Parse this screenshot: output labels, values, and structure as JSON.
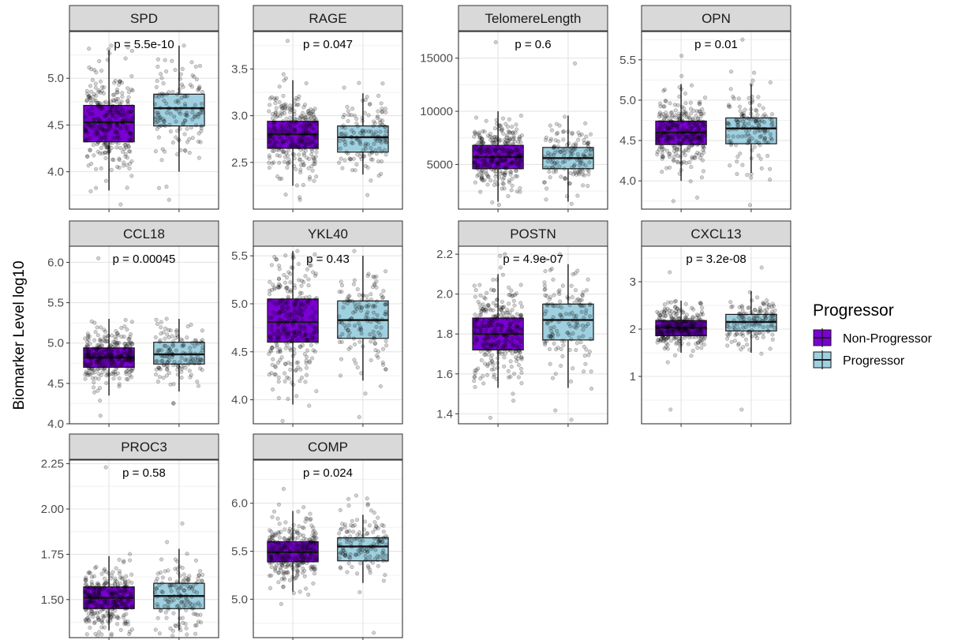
{
  "chart_data": {
    "type": "boxplot",
    "ylabel": "Biomarker Level log10",
    "legend": {
      "title": "Progressor",
      "position": "right",
      "entries": [
        {
          "label": "Non-Progressor",
          "color": "#7b00d4"
        },
        {
          "label": "Progressor",
          "color": "#9fd0e0"
        }
      ]
    },
    "grid": true,
    "groups": [
      "Non-Progressor",
      "Progressor"
    ],
    "panels": [
      {
        "name": "SPD",
        "pvalue": "p = 5.5e-10",
        "ylim": [
          3.6,
          5.5
        ],
        "ticks": [
          {
            "v": 4.0,
            "label": "4.0"
          },
          {
            "v": 4.5,
            "label": "4.5"
          },
          {
            "v": 5.0,
            "label": "5.0"
          }
        ],
        "boxes": [
          {
            "group": "Non-Progressor",
            "lower": 4.32,
            "q1": 4.32,
            "median": 4.53,
            "q3": 4.71,
            "upper": 5.0,
            "min": 3.8,
            "max": 5.3
          },
          {
            "group": "Progressor",
            "q1": 4.49,
            "median": 4.68,
            "q3": 4.83,
            "min": 4.0,
            "max": 5.35
          }
        ],
        "range_pts": [
          [
            3.65,
            5.35
          ],
          [
            3.7,
            5.35
          ]
        ]
      },
      {
        "name": "RAGE",
        "pvalue": "p = 0.047",
        "ylim": [
          2.0,
          3.9
        ],
        "ticks": [
          {
            "v": 2.5,
            "label": "2.5"
          },
          {
            "v": 3.0,
            "label": "3.0"
          },
          {
            "v": 3.5,
            "label": "3.5"
          }
        ],
        "boxes": [
          {
            "group": "Non-Progressor",
            "q1": 2.65,
            "median": 2.8,
            "q3": 2.94,
            "min": 2.25,
            "max": 3.38
          },
          {
            "group": "Progressor",
            "q1": 2.61,
            "median": 2.77,
            "q3": 2.89,
            "min": 2.37,
            "max": 3.24
          }
        ],
        "range_pts": [
          [
            2.1,
            3.8
          ],
          [
            2.15,
            3.35
          ]
        ]
      },
      {
        "name": "TelomereLength",
        "pvalue": "p = 0.6",
        "ylim": [
          800,
          17500
        ],
        "ticks": [
          {
            "v": 5000,
            "label": "5000"
          },
          {
            "v": 10000,
            "label": "10000"
          },
          {
            "v": 15000,
            "label": "15000"
          }
        ],
        "boxes": [
          {
            "group": "Non-Progressor",
            "q1": 4600,
            "median": 5700,
            "q3": 6800,
            "min": 1500,
            "max": 10000
          },
          {
            "group": "Progressor",
            "q1": 4600,
            "median": 5600,
            "q3": 6600,
            "min": 1500,
            "max": 9600
          }
        ],
        "range_pts": [
          [
            1200,
            16500
          ],
          [
            1300,
            14500
          ]
        ]
      },
      {
        "name": "OPN",
        "pvalue": "p = 0.01",
        "ylim": [
          3.65,
          5.85
        ],
        "ticks": [
          {
            "v": 4.0,
            "label": "4.0"
          },
          {
            "v": 4.5,
            "label": "4.5"
          },
          {
            "v": 5.0,
            "label": "5.0"
          },
          {
            "v": 5.5,
            "label": "5.5"
          }
        ],
        "boxes": [
          {
            "group": "Non-Progressor",
            "q1": 4.45,
            "median": 4.6,
            "q3": 4.74,
            "min": 4.0,
            "max": 5.2
          },
          {
            "group": "Progressor",
            "q1": 4.46,
            "median": 4.65,
            "q3": 4.78,
            "min": 4.1,
            "max": 5.2
          }
        ],
        "range_pts": [
          [
            3.75,
            5.55
          ],
          [
            3.7,
            5.75
          ]
        ]
      },
      {
        "name": "CCL18",
        "pvalue": "p = 0.00045",
        "ylim": [
          4.0,
          6.2
        ],
        "ticks": [
          {
            "v": 4.0,
            "label": "4.0"
          },
          {
            "v": 4.5,
            "label": "4.5"
          },
          {
            "v": 5.0,
            "label": "5.0"
          },
          {
            "v": 5.5,
            "label": "5.5"
          },
          {
            "v": 6.0,
            "label": "6.0"
          }
        ],
        "boxes": [
          {
            "group": "Non-Progressor",
            "q1": 4.7,
            "median": 4.82,
            "q3": 4.94,
            "min": 4.35,
            "max": 5.3
          },
          {
            "group": "Progressor",
            "q1": 4.74,
            "median": 4.86,
            "q3": 5.01,
            "min": 4.4,
            "max": 5.3
          }
        ],
        "range_pts": [
          [
            4.1,
            6.05
          ],
          [
            4.25,
            5.3
          ]
        ]
      },
      {
        "name": "YKL40",
        "pvalue": "p = 0.43",
        "ylim": [
          3.75,
          5.6
        ],
        "ticks": [
          {
            "v": 4.0,
            "label": "4.0"
          },
          {
            "v": 4.5,
            "label": "4.5"
          },
          {
            "v": 5.0,
            "label": "5.0"
          },
          {
            "v": 5.5,
            "label": "5.5"
          }
        ],
        "boxes": [
          {
            "group": "Non-Progressor",
            "q1": 4.6,
            "median": 4.81,
            "q3": 5.05,
            "min": 3.95,
            "max": 5.55
          },
          {
            "group": "Progressor",
            "q1": 4.64,
            "median": 4.83,
            "q3": 5.03,
            "min": 4.2,
            "max": 5.5
          }
        ],
        "range_pts": [
          [
            3.78,
            5.55
          ],
          [
            3.82,
            5.55
          ]
        ]
      },
      {
        "name": "POSTN",
        "pvalue": "p = 4.9e-07",
        "ylim": [
          1.35,
          2.24
        ],
        "ticks": [
          {
            "v": 1.4,
            "label": "1.4"
          },
          {
            "v": 1.6,
            "label": "1.6"
          },
          {
            "v": 1.8,
            "label": "1.8"
          },
          {
            "v": 2.0,
            "label": "2.0"
          },
          {
            "v": 2.2,
            "label": "2.2"
          }
        ],
        "boxes": [
          {
            "group": "Non-Progressor",
            "q1": 1.72,
            "median": 1.8,
            "q3": 1.88,
            "min": 1.53,
            "max": 2.1
          },
          {
            "group": "Progressor",
            "q1": 1.77,
            "median": 1.87,
            "q3": 1.95,
            "min": 1.53,
            "max": 2.15
          }
        ],
        "range_pts": [
          [
            1.38,
            2.2
          ],
          [
            1.37,
            2.2
          ]
        ]
      },
      {
        "name": "CXCL13",
        "pvalue": "p = 3.2e-08",
        "ylim": [
          0.0,
          3.75
        ],
        "ticks": [
          {
            "v": 1,
            "label": "1"
          },
          {
            "v": 2,
            "label": "2"
          },
          {
            "v": 3,
            "label": "3"
          }
        ],
        "boxes": [
          {
            "group": "Non-Progressor",
            "q1": 1.86,
            "median": 2.03,
            "q3": 2.18,
            "min": 1.5,
            "max": 2.6
          },
          {
            "group": "Progressor",
            "q1": 1.96,
            "median": 2.15,
            "q3": 2.31,
            "min": 1.5,
            "max": 2.8
          }
        ],
        "range_pts": [
          [
            0.3,
            3.2
          ],
          [
            0.3,
            3.3
          ]
        ]
      },
      {
        "name": "PROC3",
        "pvalue": "p = 0.58",
        "ylim": [
          1.29,
          2.27
        ],
        "ticks": [
          {
            "v": 1.5,
            "label": "1.50"
          },
          {
            "v": 1.75,
            "label": "1.75"
          },
          {
            "v": 2.0,
            "label": "2.00"
          },
          {
            "v": 2.25,
            "label": "2.25"
          }
        ],
        "boxes": [
          {
            "group": "Non-Progressor",
            "q1": 1.45,
            "median": 1.51,
            "q3": 1.57,
            "min": 1.33,
            "max": 1.74
          },
          {
            "group": "Progressor",
            "q1": 1.45,
            "median": 1.52,
            "q3": 1.59,
            "min": 1.33,
            "max": 1.78
          }
        ],
        "range_pts": [
          [
            1.3,
            2.23
          ],
          [
            1.3,
            1.92
          ]
        ]
      },
      {
        "name": "COMP",
        "pvalue": "p = 0.024",
        "ylim": [
          4.6,
          6.45
        ],
        "ticks": [
          {
            "v": 5.0,
            "label": "5.0"
          },
          {
            "v": 5.5,
            "label": "5.5"
          },
          {
            "v": 6.0,
            "label": "6.0"
          }
        ],
        "boxes": [
          {
            "group": "Non-Progressor",
            "q1": 5.39,
            "median": 5.49,
            "q3": 5.6,
            "min": 5.08,
            "max": 5.92
          },
          {
            "group": "Progressor",
            "q1": 5.4,
            "median": 5.55,
            "q3": 5.64,
            "min": 5.17,
            "max": 5.88
          }
        ],
        "range_pts": [
          [
            4.95,
            6.15
          ],
          [
            4.65,
            6.08
          ]
        ]
      }
    ]
  }
}
